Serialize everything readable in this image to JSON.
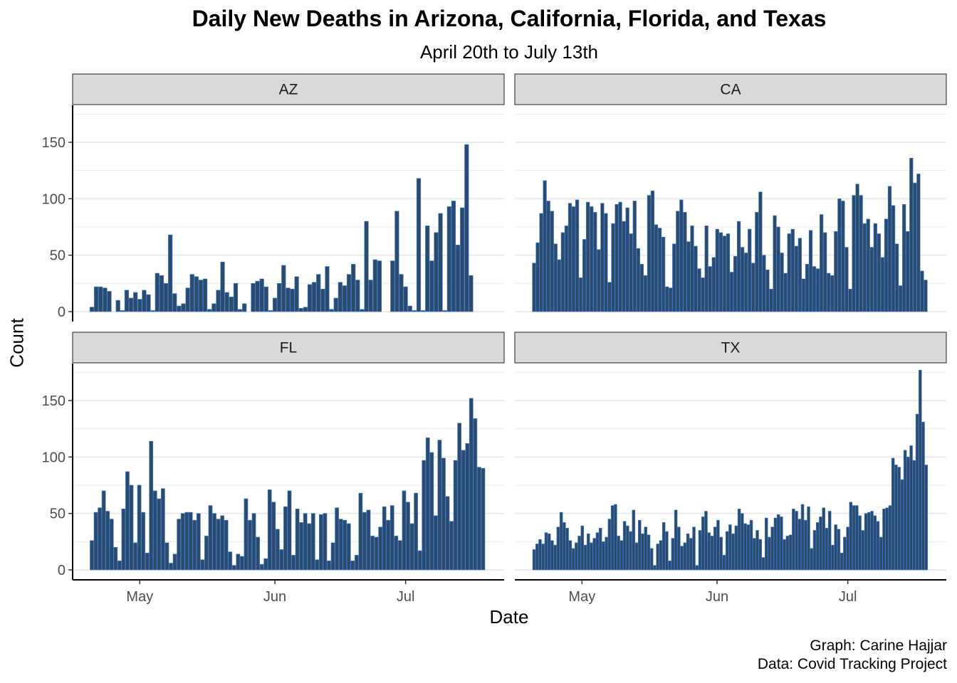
{
  "chart_data": {
    "type": "bar",
    "layout": "faceted-2x2",
    "title": "Daily New Deaths in Arizona, California, Florida, and Texas",
    "subtitle": "April 20th to July 13th",
    "xlabel": "Date",
    "ylabel": "Count",
    "caption": [
      "Graph: Carine Hajjar",
      "Data: Covid Tracking Project"
    ],
    "x_start_date": "2020-04-20",
    "x_ticks": [
      {
        "label": "May",
        "date": "2020-05-01"
      },
      {
        "label": "Jun",
        "date": "2020-06-01"
      },
      {
        "label": "Jul",
        "date": "2020-07-01"
      }
    ],
    "ylim": [
      0,
      180
    ],
    "y_ticks": [
      0,
      50,
      100,
      150
    ],
    "grid": true,
    "bar_fill": "#2c4a6b",
    "bar_outline": "#3a7fd4",
    "panels": [
      {
        "name": "AZ",
        "values": [
          4,
          22,
          22,
          21,
          18,
          0,
          10,
          1,
          19,
          12,
          17,
          11,
          19,
          15,
          1,
          34,
          32,
          25,
          68,
          16,
          5,
          7,
          21,
          33,
          31,
          28,
          29,
          2,
          7,
          19,
          44,
          17,
          13,
          25,
          2,
          7,
          0,
          25,
          27,
          29,
          22,
          1,
          12,
          25,
          41,
          21,
          20,
          31,
          3,
          4,
          24,
          26,
          33,
          20,
          40,
          2,
          12,
          26,
          23,
          33,
          42,
          28,
          2,
          80,
          28,
          46,
          45,
          0,
          0,
          45,
          89,
          33,
          22,
          5,
          1,
          118,
          1,
          76,
          45,
          70,
          87,
          1,
          93,
          98,
          59,
          92,
          148,
          32
        ]
      },
      {
        "name": "CA",
        "values": [
          43,
          61,
          87,
          116,
          98,
          89,
          60,
          46,
          70,
          76,
          96,
          93,
          99,
          30,
          64,
          97,
          93,
          88,
          55,
          96,
          87,
          26,
          78,
          95,
          97,
          80,
          92,
          69,
          98,
          56,
          42,
          32,
          103,
          107,
          77,
          74,
          66,
          22,
          21,
          60,
          89,
          99,
          88,
          62,
          76,
          58,
          38,
          30,
          76,
          40,
          48,
          73,
          70,
          67,
          69,
          35,
          49,
          80,
          57,
          52,
          73,
          43,
          88,
          106,
          50,
          37,
          20,
          85,
          75,
          52,
          34,
          69,
          73,
          58,
          65,
          29,
          42,
          72,
          40,
          38,
          86,
          70,
          34,
          32,
          71,
          100,
          98,
          57,
          20,
          103,
          113,
          103,
          78,
          82,
          57,
          78,
          69,
          48,
          82,
          111,
          94,
          60,
          23,
          95,
          71,
          136,
          114,
          122,
          36,
          28
        ]
      },
      {
        "name": "FL",
        "values": [
          26,
          51,
          55,
          70,
          52,
          45,
          20,
          8,
          54,
          87,
          75,
          24,
          75,
          51,
          15,
          114,
          70,
          63,
          72,
          24,
          6,
          14,
          45,
          50,
          51,
          51,
          44,
          50,
          9,
          30,
          57,
          50,
          45,
          48,
          44,
          16,
          4,
          14,
          12,
          63,
          44,
          50,
          29,
          5,
          10,
          71,
          60,
          36,
          18,
          56,
          70,
          13,
          54,
          42,
          50,
          41,
          50,
          9,
          49,
          50,
          8,
          24,
          55,
          45,
          44,
          41,
          8,
          13,
          68,
          51,
          53,
          30,
          29,
          38,
          56,
          44,
          57,
          30,
          26,
          70,
          60,
          41,
          68,
          17,
          97,
          117,
          104,
          48,
          115,
          99,
          65,
          43,
          97,
          130,
          106,
          112,
          152,
          134,
          91,
          90
        ]
      },
      {
        "name": "TX",
        "values": [
          18,
          23,
          27,
          23,
          33,
          32,
          26,
          22,
          38,
          51,
          42,
          37,
          26,
          19,
          24,
          30,
          39,
          22,
          32,
          24,
          28,
          33,
          37,
          25,
          29,
          45,
          57,
          58,
          30,
          26,
          43,
          39,
          34,
          53,
          24,
          44,
          32,
          38,
          31,
          19,
          4,
          23,
          26,
          42,
          34,
          8,
          28,
          53,
          38,
          21,
          24,
          32,
          28,
          38,
          4,
          35,
          47,
          52,
          33,
          30,
          38,
          44,
          29,
          13,
          34,
          40,
          32,
          39,
          54,
          50,
          41,
          40,
          44,
          28,
          35,
          27,
          11,
          46,
          29,
          38,
          46,
          49,
          47,
          27,
          30,
          31,
          54,
          52,
          45,
          58,
          44,
          56,
          19,
          35,
          42,
          47,
          55,
          37,
          52,
          22,
          40,
          36,
          15,
          29,
          38,
          60,
          57,
          57,
          48,
          35,
          50,
          51,
          52,
          48,
          43,
          29,
          54,
          55,
          57,
          99,
          93,
          91,
          80,
          106,
          100,
          110,
          97,
          138,
          177,
          131,
          93
        ]
      }
    ]
  }
}
